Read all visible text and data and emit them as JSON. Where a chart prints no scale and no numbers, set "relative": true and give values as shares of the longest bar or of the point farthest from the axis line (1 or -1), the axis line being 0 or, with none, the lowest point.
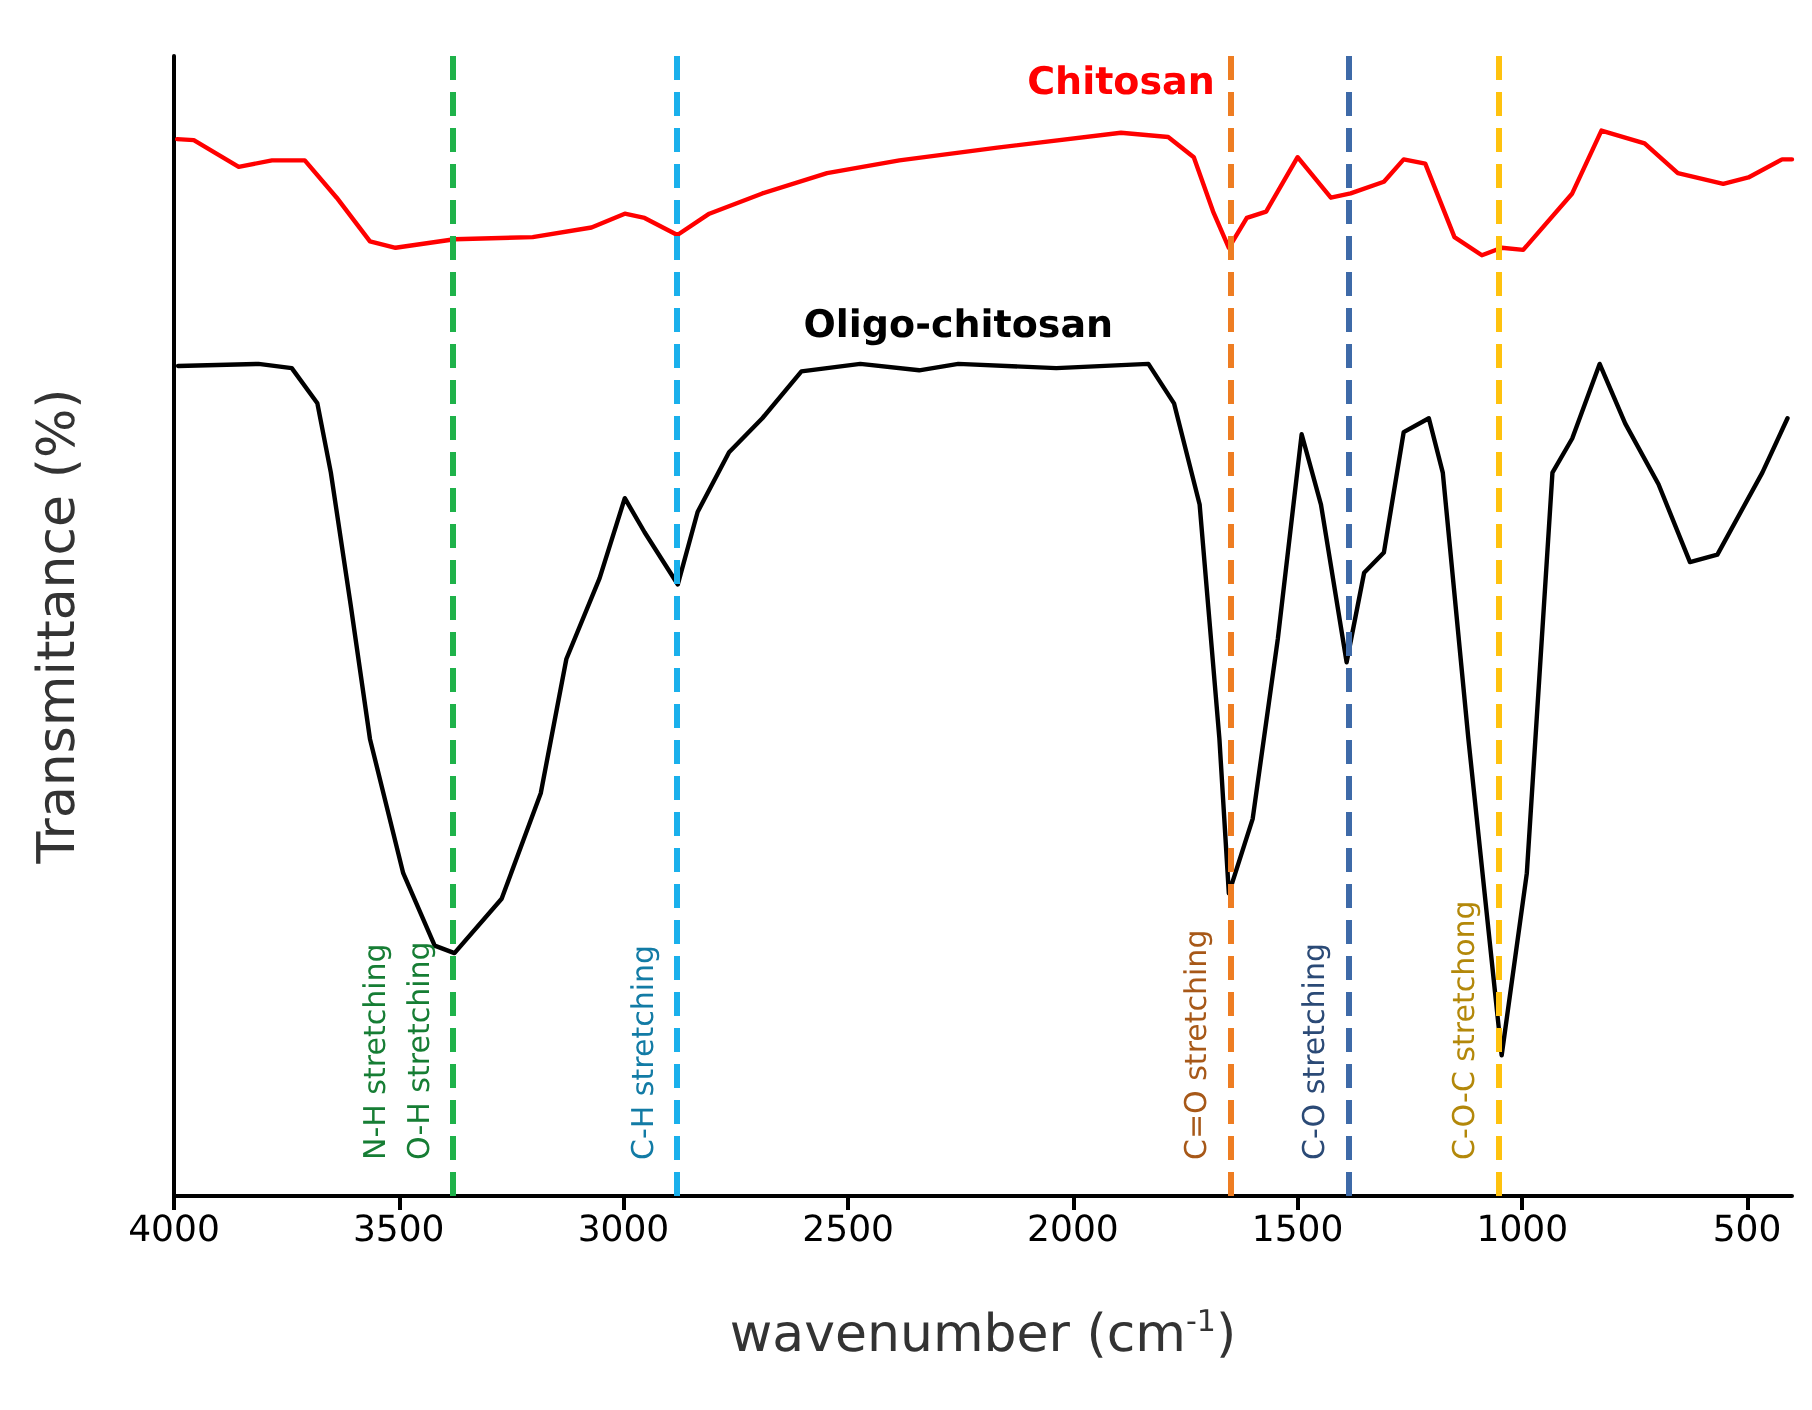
{
  "chart_data": {
    "type": "line",
    "relative": true,
    "xlabel": "wavenumber (cm$^{-1}$)",
    "ylabel": "Transmittance (%)",
    "xlim": [
      4000,
      400
    ],
    "xticks": [
      4000,
      3500,
      3000,
      2500,
      2000,
      1500,
      1000,
      500
    ],
    "grid": false,
    "legend": false,
    "marker": "none",
    "line_style": "solid",
    "tick_labels": "x",
    "series": [
      {
        "name": "Chitosan",
        "color": "#ff0000",
        "x": [
          3993,
          3956,
          3856,
          3782,
          3709,
          3638,
          3564,
          3507,
          3376,
          3202,
          3071,
          2997,
          2953,
          2880,
          2809,
          2691,
          2547,
          2386,
          2168,
          1893,
          1788,
          1731,
          1688,
          1653,
          1613,
          1570,
          1500,
          1426,
          1382,
          1308,
          1264,
          1216,
          1151,
          1090,
          1046,
          998,
          889,
          824,
          728,
          654,
          553,
          497,
          422,
          400
        ],
        "values": [
          0.992,
          0.991,
          0.966,
          0.972,
          0.972,
          0.937,
          0.896,
          0.89,
          0.898,
          0.9,
          0.909,
          0.922,
          0.918,
          0.902,
          0.922,
          0.941,
          0.96,
          0.972,
          0.984,
          0.998,
          0.994,
          0.975,
          0.924,
          0.89,
          0.918,
          0.924,
          0.975,
          0.937,
          0.941,
          0.952,
          0.973,
          0.969,
          0.9,
          0.883,
          0.89,
          0.888,
          0.941,
          1,
          0.988,
          0.96,
          0.95,
          0.956,
          0.973,
          0.973
        ]
      },
      {
        "name": "Oligo-chitosan",
        "color": "#000000",
        "x": [
          3991,
          3812,
          3738,
          3681,
          3651,
          3607,
          3564,
          3490,
          3420,
          3376,
          3271,
          3184,
          3127,
          3053,
          2997,
          2953,
          2879,
          2835,
          2765,
          2691,
          2604,
          2473,
          2342,
          2255,
          2037,
          1832,
          1775,
          1718,
          1674,
          1653,
          1600,
          1544,
          1491,
          1448,
          1391,
          1352,
          1308,
          1264,
          1208,
          1177,
          1120,
          1046,
          990,
          933,
          889,
          828,
          771,
          697,
          627,
          566,
          466,
          410
        ],
        "values": [
          0.779,
          0.781,
          0.777,
          0.744,
          0.679,
          0.555,
          0.429,
          0.303,
          0.235,
          0.228,
          0.279,
          0.378,
          0.504,
          0.58,
          0.655,
          0.623,
          0.574,
          0.642,
          0.698,
          0.73,
          0.774,
          0.781,
          0.775,
          0.781,
          0.777,
          0.781,
          0.744,
          0.649,
          0.429,
          0.284,
          0.354,
          0.523,
          0.715,
          0.649,
          0.501,
          0.585,
          0.604,
          0.717,
          0.73,
          0.679,
          0.429,
          0.132,
          0.303,
          0.679,
          0.711,
          0.781,
          0.725,
          0.668,
          0.595,
          0.602,
          0.679,
          0.73
        ]
      }
    ],
    "ref_lines": [
      {
        "axis": "x",
        "value": 3380,
        "label": "N-H stretching\nO-H stretching",
        "color": "#1fb24a",
        "line_style": "dashed"
      },
      {
        "axis": "x",
        "value": 2880,
        "label": "C-H stretching",
        "color": "#1ab0ec",
        "line_style": "dashed"
      },
      {
        "axis": "x",
        "value": 1651,
        "label": "C=O stretching",
        "color": "#ee7d22",
        "line_style": "dashed"
      },
      {
        "axis": "x",
        "value": 1387,
        "label": "C-O stretching",
        "color": "#3e6aa8",
        "line_style": "dashed"
      },
      {
        "axis": "x",
        "value": 1055,
        "label": "C-O-C stretchong",
        "color": "#ffc20e",
        "line_style": "dashed"
      }
    ]
  }
}
